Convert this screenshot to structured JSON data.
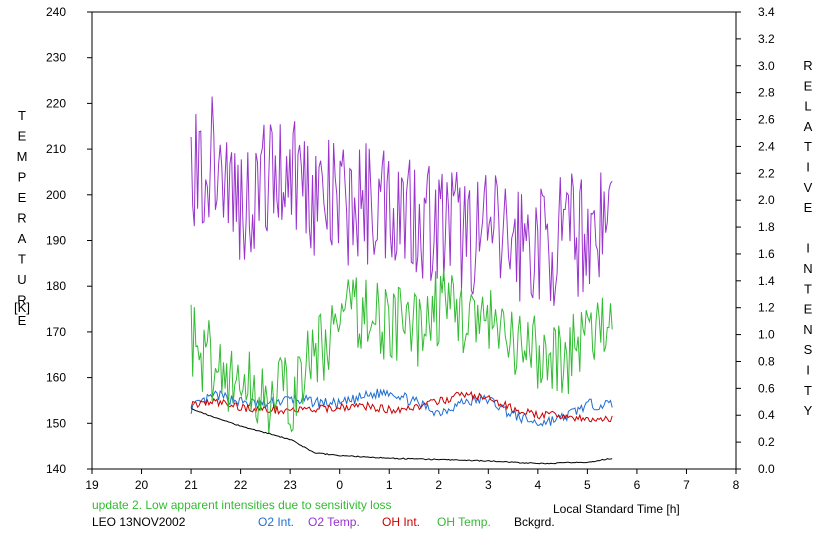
{
  "chart_data": {
    "type": "line",
    "xlabel": "Local Standard Time [h]",
    "ylabel_left": "TEMPERATURE",
    "ylabel_left_unit": "[K]",
    "ylabel_right": "RELATIVE INTENSITY",
    "x_ticks": [
      "19",
      "20",
      "21",
      "22",
      "23",
      "0",
      "1",
      "2",
      "3",
      "4",
      "5",
      "6",
      "7",
      "8"
    ],
    "xlim": [
      19,
      32
    ],
    "ylim_left": [
      140,
      240
    ],
    "ylim_right": [
      0,
      3.4
    ],
    "y_left_ticks": [
      "140",
      "150",
      "160",
      "170",
      "180",
      "190",
      "200",
      "210",
      "220",
      "230",
      "240"
    ],
    "y_right_ticks": [
      "0.0",
      "0.2",
      "0.4",
      "0.6",
      "0.8",
      "1.0",
      "1.2",
      "1.4",
      "1.6",
      "1.8",
      "2.0",
      "2.2",
      "2.4",
      "2.6",
      "2.8",
      "3.0",
      "3.2",
      "3.4"
    ],
    "grid": false,
    "note": "update 2. Low apparent intensities due to sensitivity loss",
    "station": "LEO 13NOV2002",
    "series": [
      {
        "name": "O2 Int.",
        "axis": "right",
        "color": "#1f6fd1",
        "x": [
          21.0,
          21.5,
          22.0,
          22.5,
          23.0,
          23.5,
          24.0,
          24.5,
          25.0,
          25.5,
          26.0,
          26.5,
          27.0,
          27.5,
          28.0,
          28.5,
          29.0,
          29.5
        ],
        "y": [
          0.45,
          0.55,
          0.5,
          0.48,
          0.52,
          0.5,
          0.48,
          0.54,
          0.58,
          0.5,
          0.42,
          0.5,
          0.52,
          0.4,
          0.34,
          0.38,
          0.48,
          0.48
        ]
      },
      {
        "name": "O2 Temp.",
        "axis": "left",
        "color": "#9933cc",
        "x": [
          21.0,
          21.5,
          22.0,
          22.5,
          23.0,
          23.5,
          24.0,
          24.5,
          25.0,
          25.5,
          26.0,
          26.5,
          27.0,
          27.5,
          28.0,
          28.5,
          29.0,
          29.5
        ],
        "y": [
          205,
          208,
          198,
          203,
          207,
          200,
          197,
          198,
          199,
          197,
          193,
          192,
          191,
          190,
          189,
          190,
          192,
          196
        ]
      },
      {
        "name": "OH Int.",
        "axis": "right",
        "color": "#cc0000",
        "x": [
          21.0,
          21.5,
          22.0,
          22.5,
          23.0,
          23.5,
          24.0,
          24.5,
          25.0,
          25.5,
          26.0,
          26.5,
          27.0,
          27.5,
          28.0,
          28.5,
          29.0,
          29.5
        ],
        "y": [
          0.48,
          0.5,
          0.46,
          0.44,
          0.44,
          0.44,
          0.46,
          0.47,
          0.44,
          0.46,
          0.5,
          0.56,
          0.52,
          0.45,
          0.4,
          0.4,
          0.36,
          0.38
        ]
      },
      {
        "name": "OH Temp.",
        "axis": "left",
        "color": "#33bb33",
        "x": [
          21.0,
          21.5,
          22.0,
          22.5,
          23.0,
          23.5,
          24.0,
          24.5,
          25.0,
          25.5,
          26.0,
          26.5,
          27.0,
          27.5,
          28.0,
          28.5,
          29.0,
          29.5
        ],
        "y": [
          168,
          163,
          158,
          157,
          155,
          165,
          172,
          175,
          172,
          170,
          176,
          174,
          171,
          166,
          165,
          164,
          170,
          168
        ]
      },
      {
        "name": "Bckgrd.",
        "axis": "right",
        "color": "#000000",
        "x": [
          21.0,
          21.5,
          22.0,
          22.5,
          23.0,
          23.5,
          24.0,
          24.5,
          25.0,
          26.0,
          27.0,
          28.0,
          29.0,
          29.5
        ],
        "y": [
          0.45,
          0.38,
          0.32,
          0.27,
          0.22,
          0.12,
          0.1,
          0.09,
          0.08,
          0.07,
          0.06,
          0.04,
          0.05,
          0.08
        ]
      }
    ]
  }
}
